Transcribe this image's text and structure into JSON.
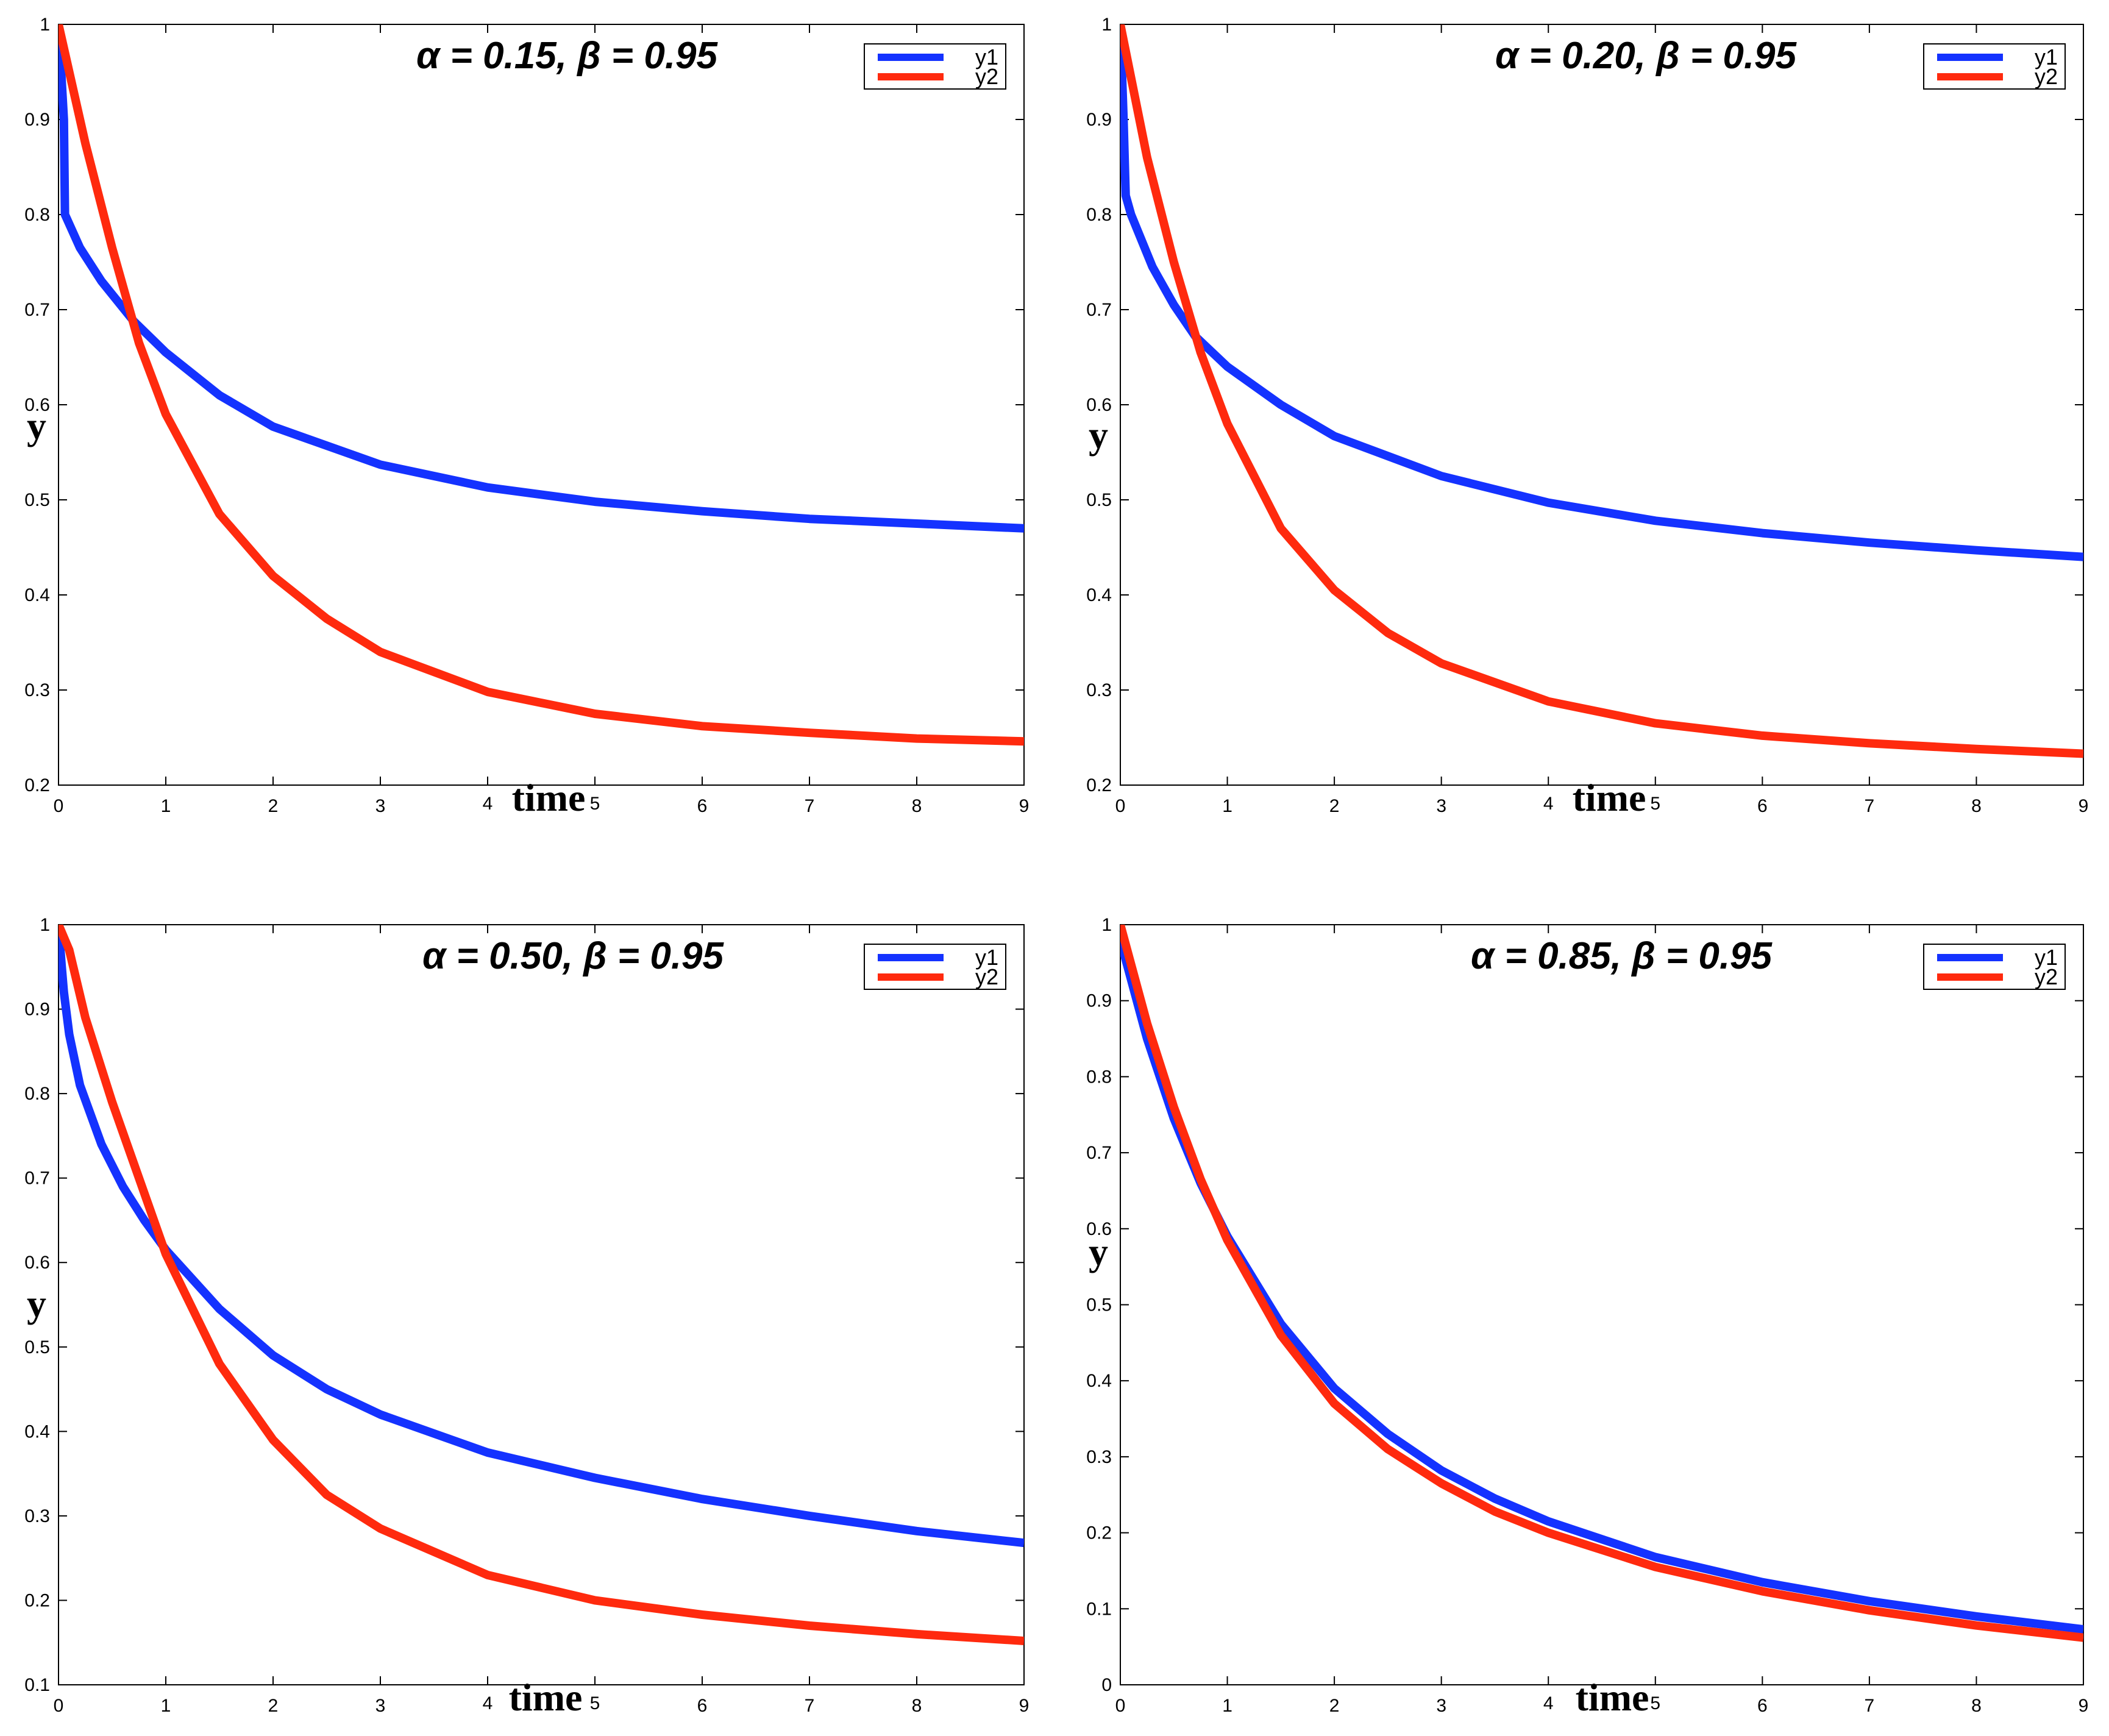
{
  "colors": {
    "y1": "#1432ff",
    "y2": "#ff2a0e",
    "axis": "#000000",
    "background": "#ffffff"
  },
  "chart_data": [
    {
      "type": "line",
      "title_prefix": "α = 0.15, ",
      "title_suffix": "β = 0.95",
      "xlabel": "time",
      "ylabel": "y",
      "xlim": [
        0,
        9
      ],
      "ylim": [
        0.2,
        1
      ],
      "xticks": [
        "0",
        "1",
        "2",
        "3",
        "4",
        "5",
        "6",
        "7",
        "8",
        "9"
      ],
      "yticks": [
        "0.2",
        "0.3",
        "0.4",
        "0.5",
        "0.6",
        "0.7",
        "0.8",
        "0.9",
        "1"
      ],
      "legend": "top-right",
      "series": [
        {
          "name": "y1",
          "x": [
            0,
            0.05,
            0.06,
            0.2,
            0.4,
            0.7,
            1,
            1.5,
            2,
            3,
            4,
            5,
            6,
            7,
            8,
            9
          ],
          "y": [
            1,
            0.9,
            0.8,
            0.765,
            0.73,
            0.688,
            0.655,
            0.61,
            0.577,
            0.537,
            0.513,
            0.498,
            0.488,
            0.48,
            0.475,
            0.47
          ]
        },
        {
          "name": "y2",
          "x": [
            0,
            0.25,
            0.5,
            0.75,
            1,
            1.5,
            2,
            2.5,
            3,
            4,
            5,
            6,
            7,
            8,
            9
          ],
          "y": [
            1,
            0.875,
            0.765,
            0.665,
            0.59,
            0.485,
            0.42,
            0.375,
            0.34,
            0.298,
            0.275,
            0.262,
            0.255,
            0.249,
            0.246
          ]
        }
      ]
    },
    {
      "type": "line",
      "title_prefix": "α = 0.20, ",
      "title_suffix": "β = 0.95",
      "xlabel": "time",
      "ylabel": "y",
      "xlim": [
        0,
        9
      ],
      "ylim": [
        0.2,
        1
      ],
      "xticks": [
        "0",
        "1",
        "2",
        "3",
        "4",
        "5",
        "6",
        "7",
        "8",
        "9"
      ],
      "yticks": [
        "0.2",
        "0.3",
        "0.4",
        "0.5",
        "0.6",
        "0.7",
        "0.8",
        "0.9",
        "1"
      ],
      "legend": "top-right",
      "series": [
        {
          "name": "y1",
          "x": [
            0,
            0.03,
            0.05,
            0.1,
            0.3,
            0.5,
            0.7,
            1,
            1.5,
            2,
            3,
            4,
            5,
            6,
            7,
            8,
            9
          ],
          "y": [
            1,
            0.9,
            0.82,
            0.8,
            0.745,
            0.705,
            0.672,
            0.64,
            0.6,
            0.567,
            0.525,
            0.497,
            0.478,
            0.465,
            0.455,
            0.447,
            0.44
          ]
        },
        {
          "name": "y2",
          "x": [
            0,
            0.25,
            0.5,
            0.75,
            1,
            1.5,
            2,
            2.5,
            3,
            4,
            5,
            6,
            7,
            8,
            9
          ],
          "y": [
            1,
            0.86,
            0.75,
            0.655,
            0.58,
            0.47,
            0.405,
            0.36,
            0.328,
            0.288,
            0.265,
            0.252,
            0.244,
            0.238,
            0.233
          ]
        }
      ]
    },
    {
      "type": "line",
      "title_prefix": "α = 0.50, ",
      "title_suffix": "β = 0.95",
      "xlabel": "time",
      "ylabel": "y",
      "xlim": [
        0,
        9
      ],
      "ylim": [
        0.1,
        1
      ],
      "xticks": [
        "0",
        "1",
        "2",
        "3",
        "4",
        "5",
        "6",
        "7",
        "8",
        "9"
      ],
      "yticks": [
        "0.1",
        "0.2",
        "0.3",
        "0.4",
        "0.5",
        "0.6",
        "0.7",
        "0.8",
        "0.9",
        "1"
      ],
      "legend": "top-right",
      "series": [
        {
          "name": "y1",
          "x": [
            0,
            0.03,
            0.05,
            0.1,
            0.2,
            0.4,
            0.6,
            0.8,
            1,
            1.5,
            2,
            2.5,
            3,
            4,
            5,
            6,
            7,
            8,
            9
          ],
          "y": [
            1,
            0.95,
            0.92,
            0.87,
            0.81,
            0.74,
            0.69,
            0.65,
            0.615,
            0.545,
            0.49,
            0.45,
            0.42,
            0.375,
            0.345,
            0.32,
            0.3,
            0.282,
            0.268
          ]
        },
        {
          "name": "y2",
          "x": [
            0,
            0.1,
            0.25,
            0.5,
            0.75,
            1,
            1.5,
            2,
            2.5,
            3,
            4,
            5,
            6,
            7,
            8,
            9
          ],
          "y": [
            1,
            0.97,
            0.89,
            0.79,
            0.7,
            0.61,
            0.48,
            0.39,
            0.325,
            0.285,
            0.23,
            0.2,
            0.183,
            0.17,
            0.16,
            0.152
          ]
        }
      ]
    },
    {
      "type": "line",
      "title_prefix": "α = 0.85, ",
      "title_suffix": "β = 0.95",
      "xlabel": "time",
      "ylabel": "y",
      "xlim": [
        0,
        9
      ],
      "ylim": [
        0,
        1
      ],
      "xticks": [
        "0",
        "1",
        "2",
        "3",
        "4",
        "5",
        "6",
        "7",
        "8",
        "9"
      ],
      "yticks": [
        "0",
        "0.1",
        "0.2",
        "0.3",
        "0.4",
        "0.5",
        "0.6",
        "0.7",
        "0.8",
        "0.9",
        "1"
      ],
      "legend": "top-right",
      "series": [
        {
          "name": "y1",
          "x": [
            0,
            0.25,
            0.5,
            0.75,
            1,
            1.5,
            2,
            2.5,
            3,
            3.5,
            4,
            5,
            6,
            7,
            8,
            9
          ],
          "y": [
            0.98,
            0.85,
            0.745,
            0.66,
            0.59,
            0.475,
            0.39,
            0.33,
            0.282,
            0.245,
            0.215,
            0.168,
            0.135,
            0.11,
            0.09,
            0.073
          ]
        },
        {
          "name": "y2",
          "x": [
            0,
            0.25,
            0.5,
            0.75,
            1,
            1.5,
            2,
            2.5,
            3,
            3.5,
            4,
            5,
            6,
            7,
            8,
            9
          ],
          "y": [
            1,
            0.87,
            0.76,
            0.665,
            0.585,
            0.46,
            0.37,
            0.31,
            0.265,
            0.228,
            0.2,
            0.155,
            0.123,
            0.098,
            0.078,
            0.062
          ]
        }
      ]
    }
  ]
}
